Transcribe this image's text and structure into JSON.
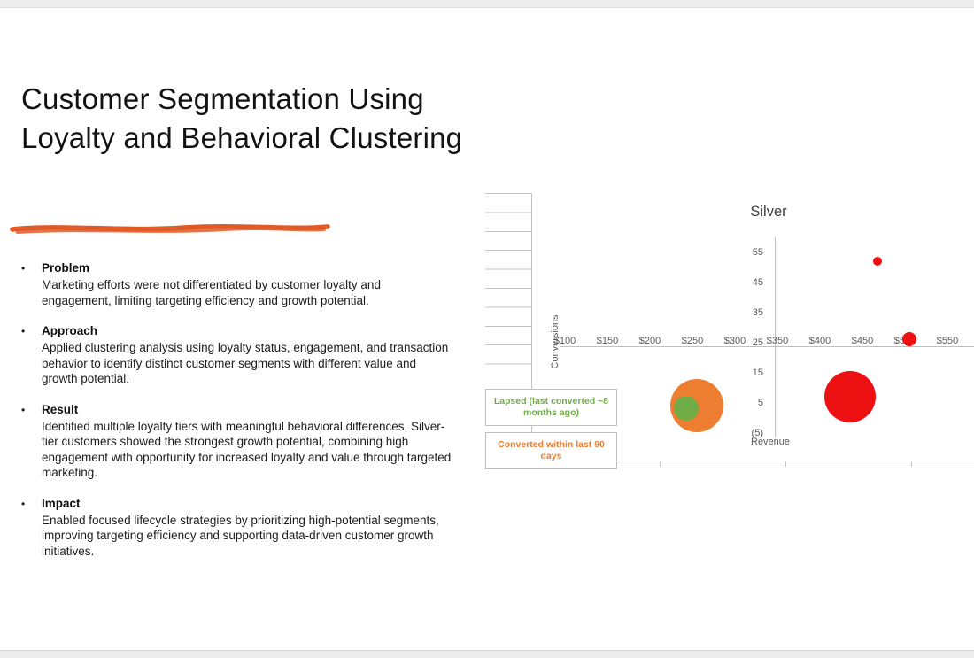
{
  "slide": {
    "title": "Customer Segmentation Using Loyalty and Behavioral Clustering",
    "accent_color": "#E05A28",
    "bullets": [
      {
        "term": "Problem",
        "text": "Marketing efforts were not differentiated by customer loyalty and engagement, limiting targeting efficiency and growth potential."
      },
      {
        "term": "Approach",
        "text": "Applied clustering analysis using loyalty status, engagement, and transaction behavior to identify distinct customer segments with different value and growth potential."
      },
      {
        "term": "Result",
        "text": "Identified multiple loyalty tiers with meaningful behavioral differences. Silver-tier customers showed the strongest growth potential, combining high engagement with opportunity for increased loyalty and value through targeted marketing."
      },
      {
        "term": "Impact",
        "text": "Enabled focused lifecycle strategies by prioritizing high-potential segments, improving targeting efficiency and supporting data-driven customer growth initiatives."
      }
    ],
    "bullet_glyph": "•"
  },
  "chart_data": {
    "type": "scatter",
    "title": "Silver",
    "xlabel": "Revenue",
    "ylabel": "Conversions",
    "x_ticks": [
      "$100",
      "$150",
      "$200",
      "$250",
      "$300",
      "$350",
      "$400",
      "$450",
      "$500",
      "$550"
    ],
    "y_ticks": [
      "55",
      "45",
      "35",
      "25",
      "15",
      "5",
      "(5)"
    ],
    "xlim": [
      100,
      575
    ],
    "ylim": [
      -8,
      60
    ],
    "grid": false,
    "legend_position": "none",
    "series": [
      {
        "name": "red-segment",
        "color": "#EE1111",
        "points": [
          {
            "revenue": 435,
            "conversions": 8,
            "size": 58
          },
          {
            "revenue": 468,
            "conversions": 53,
            "size": 10
          },
          {
            "revenue": 505,
            "conversions": 27,
            "size": 16
          }
        ]
      },
      {
        "name": "orange-segment",
        "color": "#ED7D31",
        "points": [
          {
            "revenue": 255,
            "conversions": 5,
            "size": 60
          }
        ]
      },
      {
        "name": "green-segment",
        "color": "#70AD47",
        "points": [
          {
            "revenue": 243,
            "conversions": 4,
            "size": 28
          }
        ]
      }
    ],
    "annotations": [
      {
        "text": "Lapsed (last converted ~8 months ago)",
        "color": "#70AD47"
      },
      {
        "text": "Converted within last 90 days",
        "color": "#ED7D31"
      }
    ]
  }
}
